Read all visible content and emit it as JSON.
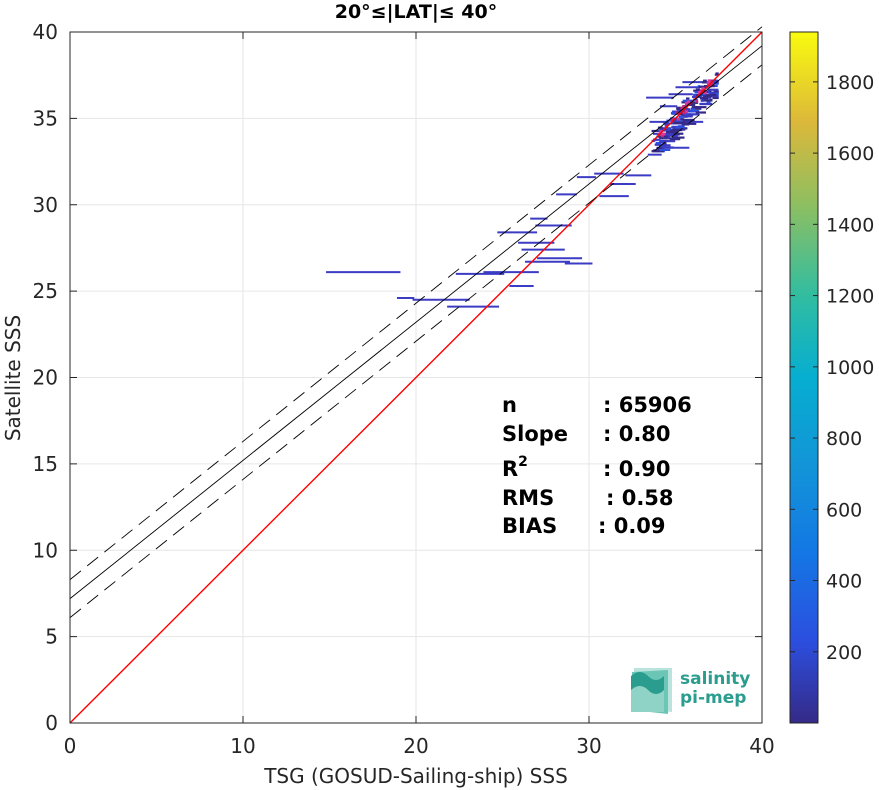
{
  "chart_data": {
    "type": "scatter",
    "title": "20°≤|LAT|≤ 40°",
    "xlabel": "TSG (GOSUD-Sailing-ship) SSS",
    "ylabel": "Satellite SSS",
    "xlim": [
      0,
      40
    ],
    "ylim": [
      0,
      40
    ],
    "xticks": [
      0,
      10,
      20,
      30,
      40
    ],
    "yticks": [
      0,
      5,
      10,
      15,
      20,
      25,
      30,
      35,
      40
    ],
    "grid": true,
    "colorbar": {
      "range": [
        0,
        1940
      ],
      "ticks": [
        200,
        400,
        600,
        800,
        1000,
        1200,
        1400,
        1600,
        1800
      ],
      "colormap": "parula"
    },
    "lines": [
      {
        "name": "1:1",
        "style": "solid",
        "color": "#ff0000",
        "slope": 1.0,
        "intercept": 0.0
      },
      {
        "name": "fit",
        "style": "solid",
        "color": "#000000",
        "slope": 0.8,
        "intercept": 7.2
      },
      {
        "name": "fit+",
        "style": "dashed",
        "color": "#000000",
        "slope": 0.8,
        "intercept": 8.3
      },
      {
        "name": "fit-",
        "style": "dashed",
        "color": "#000000",
        "slope": 0.8,
        "intercept": 6.1
      }
    ],
    "segments": [
      {
        "x0": 14.8,
        "x1": 19.1,
        "y": 26.1
      },
      {
        "x0": 18.9,
        "x1": 19.9,
        "y": 24.6
      },
      {
        "x0": 19.8,
        "x1": 23.1,
        "y": 24.5
      },
      {
        "x0": 21.8,
        "x1": 24.8,
        "y": 24.1
      },
      {
        "x0": 22.3,
        "x1": 25.1,
        "y": 26.0
      },
      {
        "x0": 23.9,
        "x1": 27.1,
        "y": 26.1
      },
      {
        "x0": 25.4,
        "x1": 26.8,
        "y": 25.3
      },
      {
        "x0": 24.7,
        "x1": 27.0,
        "y": 28.4
      },
      {
        "x0": 25.9,
        "x1": 28.0,
        "y": 27.8
      },
      {
        "x0": 26.1,
        "x1": 28.6,
        "y": 27.4
      },
      {
        "x0": 26.6,
        "x1": 27.6,
        "y": 29.2
      },
      {
        "x0": 26.9,
        "x1": 29.0,
        "y": 28.8
      },
      {
        "x0": 27.0,
        "x1": 29.6,
        "y": 26.9
      },
      {
        "x0": 26.3,
        "x1": 28.9,
        "y": 26.7
      },
      {
        "x0": 28.6,
        "x1": 30.2,
        "y": 26.6
      },
      {
        "x0": 28.1,
        "x1": 29.3,
        "y": 30.6
      },
      {
        "x0": 29.3,
        "x1": 30.4,
        "y": 31.6
      },
      {
        "x0": 30.3,
        "x1": 32.0,
        "y": 31.8
      },
      {
        "x0": 30.6,
        "x1": 32.3,
        "y": 30.5
      },
      {
        "x0": 31.2,
        "x1": 32.7,
        "y": 31.2
      },
      {
        "x0": 32.1,
        "x1": 33.6,
        "y": 31.7
      },
      {
        "x0": 33.4,
        "x1": 34.2,
        "y": 32.9
      },
      {
        "x0": 33.9,
        "x1": 35.8,
        "y": 33.3
      },
      {
        "x0": 33.7,
        "x1": 35.1,
        "y": 34.1
      },
      {
        "x0": 34.3,
        "x1": 35.6,
        "y": 34.7
      },
      {
        "x0": 34.8,
        "x1": 36.2,
        "y": 35.4
      },
      {
        "x0": 33.3,
        "x1": 34.9,
        "y": 36.2
      },
      {
        "x0": 34.6,
        "x1": 36.0,
        "y": 36.4
      },
      {
        "x0": 35.0,
        "x1": 36.4,
        "y": 36.8
      },
      {
        "x0": 35.4,
        "x1": 36.9,
        "y": 37.1
      },
      {
        "x0": 35.2,
        "x1": 36.6,
        "y": 34.8
      },
      {
        "x0": 33.5,
        "x1": 34.5,
        "y": 34.8
      },
      {
        "x0": 34.1,
        "x1": 35.1,
        "y": 35.7
      }
    ],
    "cluster": {
      "x": [
        33.6,
        37.4
      ],
      "y": [
        33.1,
        37.6
      ]
    }
  },
  "stats": {
    "labels": [
      "n",
      "Slope",
      "R",
      "RMS",
      "BIAS"
    ],
    "r_superscript": "2",
    "values": [
      ": 65906",
      ": 0.80",
      ": 0.90",
      ": 0.58",
      ": 0.09"
    ]
  },
  "logo": {
    "line1": "salinity",
    "line2": "pi-mep",
    "color": "#2a9d8f"
  }
}
